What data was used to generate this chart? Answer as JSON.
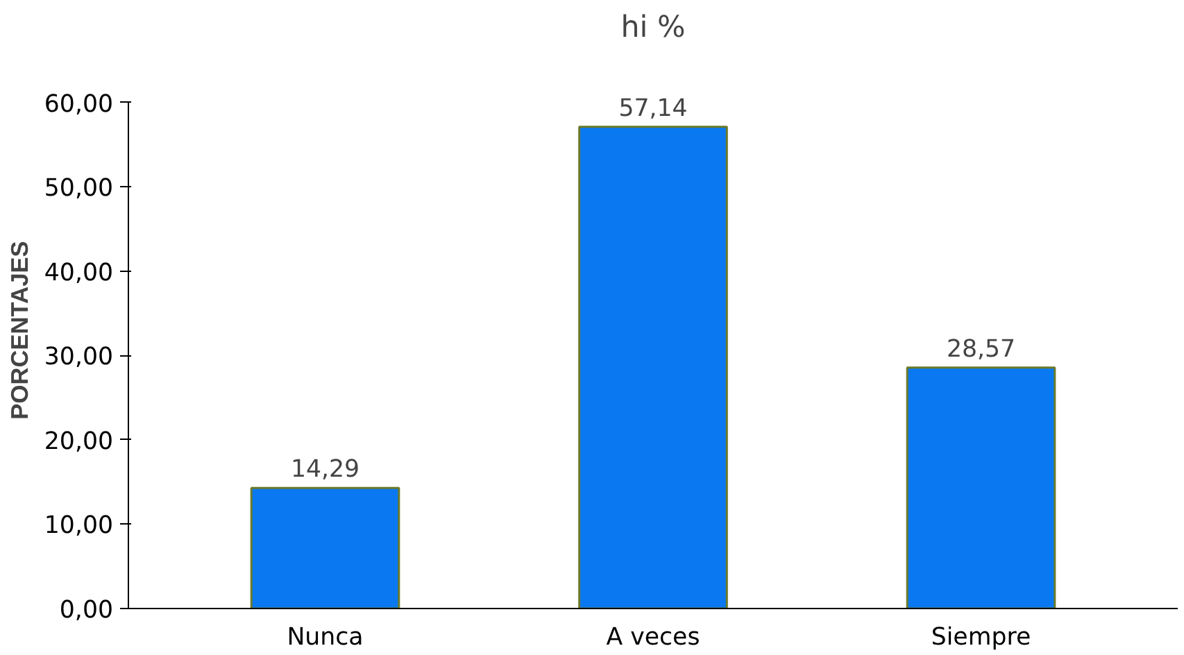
{
  "chart_data": {
    "type": "bar",
    "title": "hi %",
    "ylabel": "PORCENTAJES",
    "categories": [
      "Nunca",
      "A veces",
      "Siempre"
    ],
    "values": [
      14.29,
      57.14,
      28.57
    ],
    "value_labels": [
      "14,29",
      "57,14",
      "28,57"
    ],
    "color": "#0a78f0",
    "ylim": [
      0,
      60
    ],
    "yticks": [
      {
        "value": 0,
        "label": "0,00"
      },
      {
        "value": 10,
        "label": "10,00"
      },
      {
        "value": 20,
        "label": "20,00"
      },
      {
        "value": 30,
        "label": "30,00"
      },
      {
        "value": 40,
        "label": "40,00"
      },
      {
        "value": 50,
        "label": "50,00"
      },
      {
        "value": 60,
        "label": "60,00"
      }
    ],
    "grid": false
  }
}
